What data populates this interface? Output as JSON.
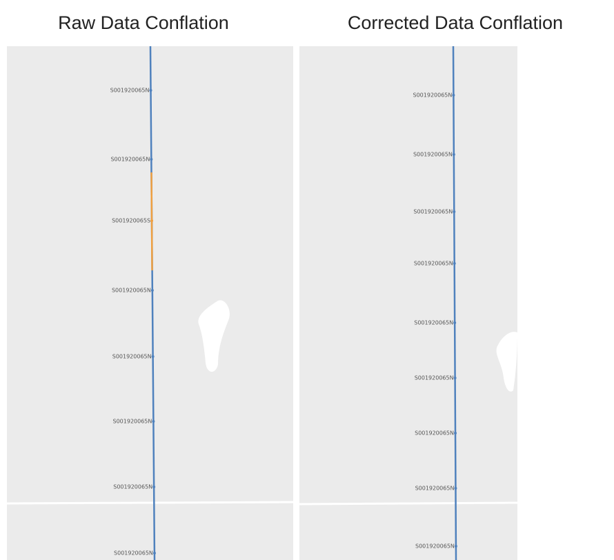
{
  "panels": [
    {
      "title": "Raw Data Conflation",
      "labels": [
        "S001920065N",
        "S001920065N",
        "S001920065S",
        "S001920065N",
        "S001920065N",
        "S001920065N",
        "S001920065N",
        "S001920065N"
      ]
    },
    {
      "title": "Corrected Data Conflation",
      "labels": [
        "S001920065N",
        "S001920065N",
        "S001920065N",
        "S001920065N",
        "S001920065N",
        "S001920065N",
        "S001920065N",
        "S001920065N",
        "S001920065N"
      ]
    }
  ]
}
